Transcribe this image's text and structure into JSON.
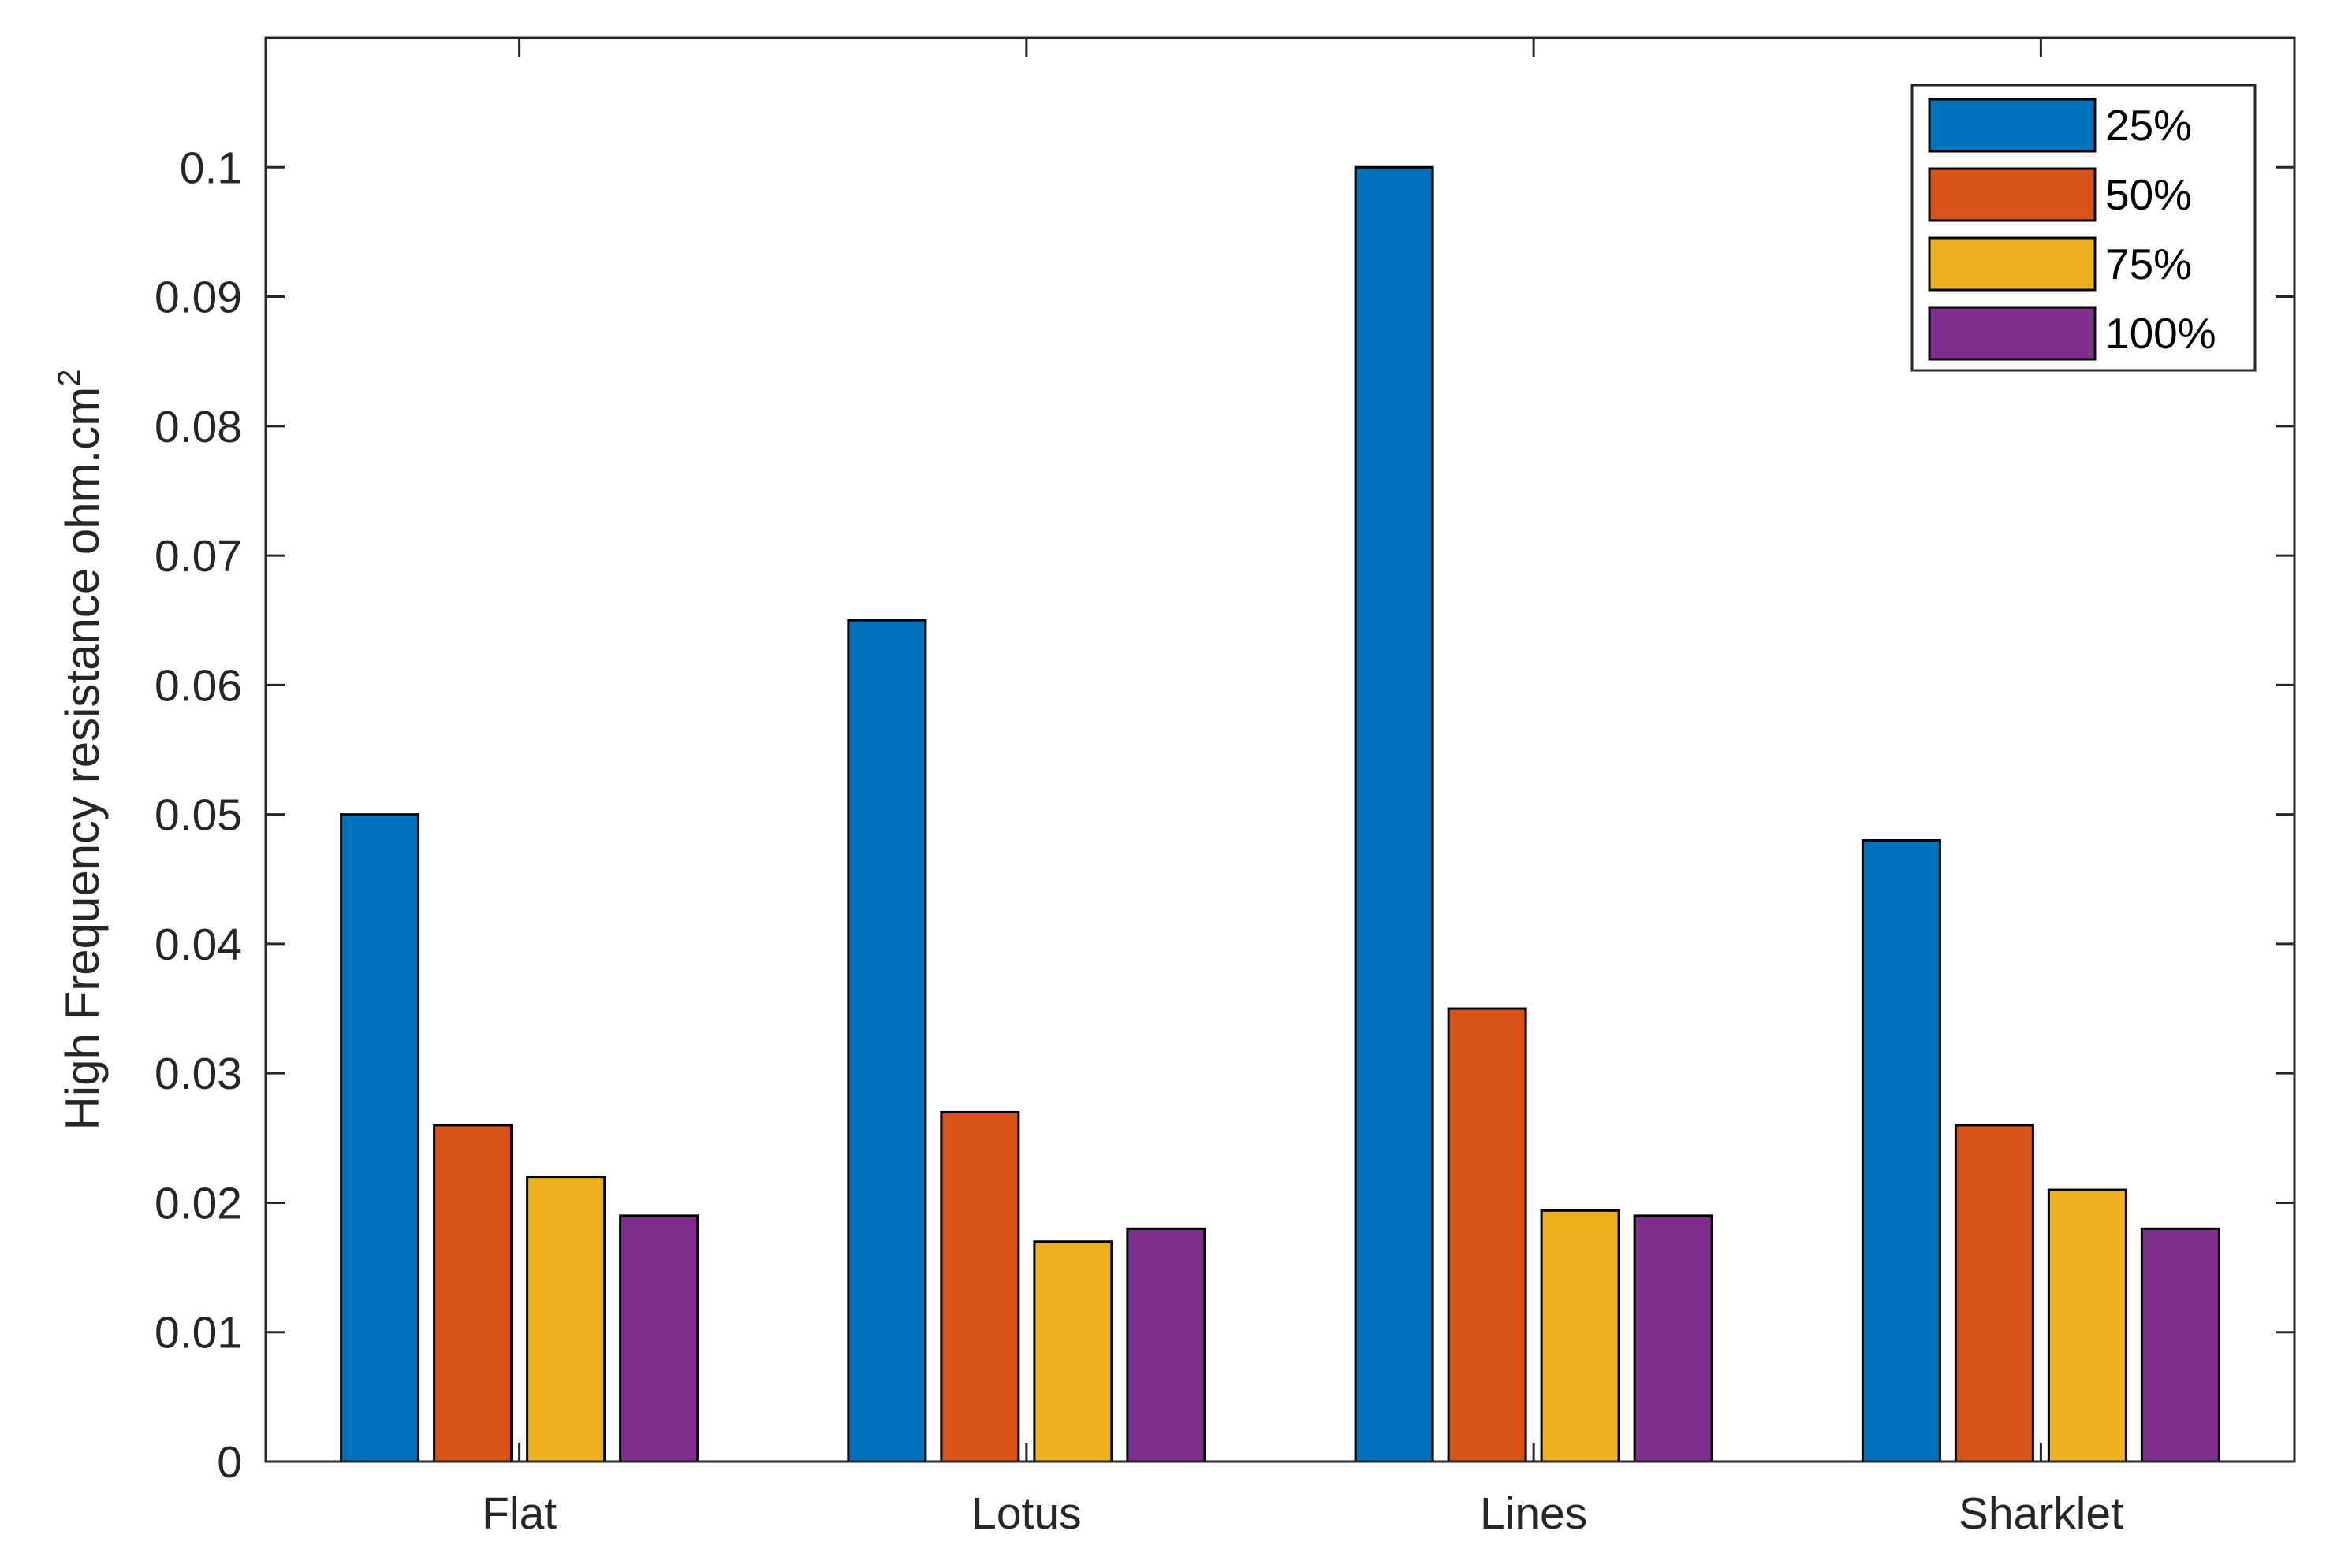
{
  "chart_data": {
    "type": "bar",
    "title": "",
    "xlabel": "",
    "ylabel": "High Frequency resistance ohm.cm",
    "ylabel_superscript": "2",
    "ylim": [
      0,
      0.11
    ],
    "yticks": [
      0,
      0.01,
      0.02,
      0.03,
      0.04,
      0.05,
      0.06,
      0.07,
      0.08,
      0.09,
      0.1
    ],
    "ytick_labels": [
      "0",
      "0.01",
      "0.02",
      "0.03",
      "0.04",
      "0.05",
      "0.06",
      "0.07",
      "0.08",
      "0.09",
      "0.1"
    ],
    "categories": [
      "Flat",
      "Lotus",
      "Lines",
      "Sharklet"
    ],
    "series": [
      {
        "name": "25%",
        "color": "#0072BD",
        "values": [
          0.05,
          0.065,
          0.1,
          0.048
        ]
      },
      {
        "name": "50%",
        "color": "#D95319",
        "values": [
          0.026,
          0.027,
          0.035,
          0.026
        ]
      },
      {
        "name": "75%",
        "color": "#EDB120",
        "values": [
          0.022,
          0.017,
          0.0194,
          0.021
        ]
      },
      {
        "name": "100%",
        "color": "#7E2F8E",
        "values": [
          0.019,
          0.018,
          0.019,
          0.018
        ]
      }
    ],
    "legend_position": "top-right",
    "grid": false
  }
}
